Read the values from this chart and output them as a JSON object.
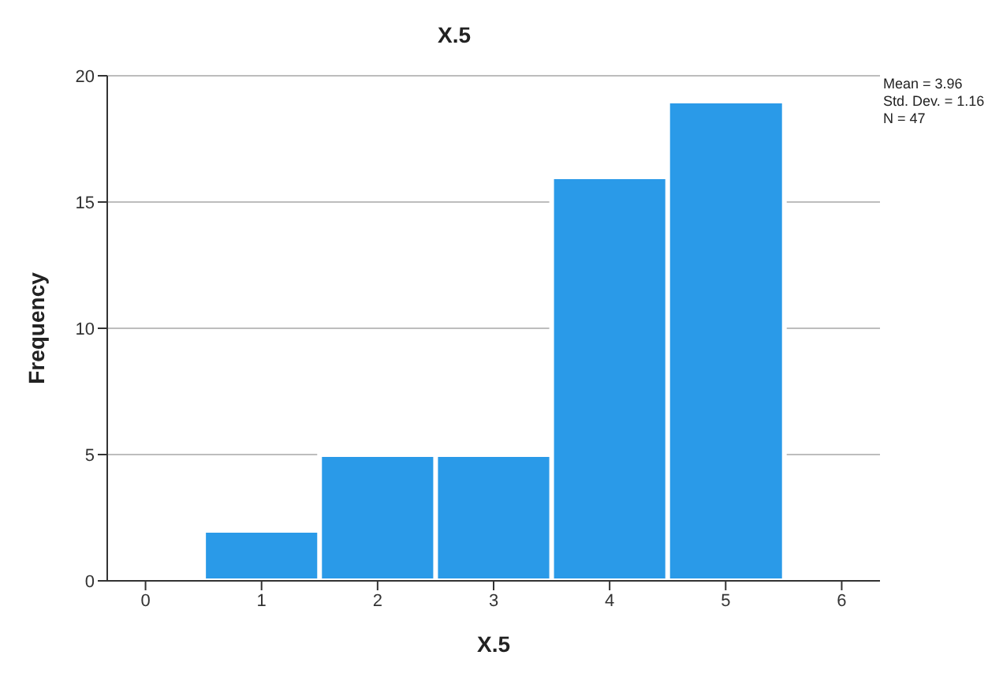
{
  "chart_data": {
    "type": "histogram",
    "title": "X.5",
    "xlabel": "X.5",
    "ylabel": "Frequency",
    "bins": [
      0.5,
      1.5,
      2.5,
      3.5,
      4.5,
      5.5
    ],
    "values": [
      2,
      5,
      5,
      16,
      19
    ],
    "color": "#2a9ae8",
    "xlim": [
      -0.33,
      6.33
    ],
    "xticks": [
      0,
      1,
      2,
      3,
      4,
      5,
      6
    ],
    "ylim": [
      0,
      20
    ],
    "yticks": [
      0,
      5,
      10,
      15,
      20
    ],
    "grid": "y",
    "annotations": [
      "Mean = 3.96",
      "Std. Dev. = 1.16",
      "N = 47"
    ]
  }
}
